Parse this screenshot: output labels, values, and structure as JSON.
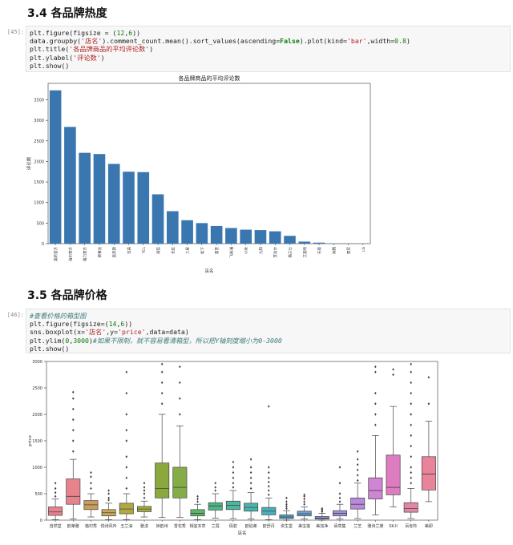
{
  "sections": [
    {
      "title": "3.4 各品牌热度",
      "prompt": "[45]:"
    },
    {
      "title": "3.5 各品牌价格",
      "prompt": "[46]:"
    }
  ],
  "code1": [
    "plt.figure(figsize = (12,6))",
    "data.groupby('店名').comment_count.mean().sort_values(ascending=False).plot(kind='bar',width=0.8)",
    "plt.title('各品牌商品的平均评论数')",
    "plt.ylabel('评论数')",
    "plt.show()"
  ],
  "code2": [
    "#查看价格的箱型图",
    "plt.figure(figsize=(14,6))",
    "sns.boxplot(x='店名',y='price',data=data)",
    "plt.ylim(0,3000)#如果不限制，就不容易看清箱型，所以把Y轴刻度缩小为0-3000",
    "plt.show()"
  ],
  "chart_data": [
    {
      "type": "bar",
      "title": "各品牌商品的平均评论数",
      "xlabel": "店名",
      "ylabel": "评论数",
      "ylim": [
        0,
        3900
      ],
      "yticks": [
        0,
        500,
        1000,
        1500,
        2000,
        2500,
        3000,
        3500
      ],
      "color": "#3a76b0",
      "categories": [
        "美的官方",
        "海尔官方",
        "格力官方",
        "荣事达",
        "奥克斯",
        "志高",
        "TCL",
        "海信",
        "长虹",
        "三星",
        "松下",
        "夏普",
        "飞利浦",
        "小米",
        "九阳",
        "苏泊尔",
        "格兰仕",
        "艾美特",
        "先锋",
        "奔腾",
        "索尼",
        "LG"
      ],
      "values": [
        3730,
        2840,
        2210,
        2180,
        1940,
        1750,
        1740,
        1200,
        790,
        570,
        500,
        430,
        380,
        340,
        330,
        300,
        190,
        50,
        25,
        8,
        5,
        3
      ]
    },
    {
      "type": "boxplot",
      "xlabel": "店名",
      "ylabel": "price",
      "ylim": [
        0,
        3000
      ],
      "yticks": [
        0,
        500,
        1000,
        1500,
        2000,
        2500,
        3000
      ],
      "categories": [
        "自然堂",
        "欧莱雅",
        "植村秀",
        "悦诗风吟",
        "玉兰油",
        "雅漾",
        "娇韵诗",
        "雪花秀",
        "相宜本草",
        "兰蔻",
        "倩碧",
        "欧珀莱",
        "欧舒丹",
        "资生堂",
        "美宝莲",
        "美加净",
        "佰草集",
        "兰芝",
        "雅诗兰黛",
        "SK-II",
        "百雀羚",
        "美即"
      ],
      "colors": [
        "#e8828d",
        "#e8828d",
        "#c89d5c",
        "#c8a850",
        "#b2a840",
        "#a3ae3e",
        "#8aa83c",
        "#84ad47",
        "#5cb76a",
        "#4db687",
        "#4cb69f",
        "#49b3ad",
        "#48b0bb",
        "#4aa9c8",
        "#6aa1d5",
        "#8b98d8",
        "#a191dd",
        "#b989db",
        "#d084d4",
        "#dd7cc0",
        "#e287a6",
        "#e8839a"
      ],
      "boxes": [
        {
          "q1": 90,
          "med": 155,
          "q3": 250,
          "lo": 10,
          "hi": 400,
          "out": [
            450,
            520,
            600,
            700
          ]
        },
        {
          "q1": 300,
          "med": 450,
          "q3": 780,
          "lo": 20,
          "hi": 1150,
          "out": [
            1300,
            1500,
            1700,
            1900,
            2100,
            2300,
            2420
          ]
        },
        {
          "q1": 200,
          "med": 290,
          "q3": 370,
          "lo": 60,
          "hi": 500,
          "out": [
            600,
            700,
            820,
            900
          ]
        },
        {
          "q1": 80,
          "med": 140,
          "q3": 200,
          "lo": 10,
          "hi": 320,
          "out": [
            380,
            420,
            500,
            560
          ]
        },
        {
          "q1": 120,
          "med": 210,
          "q3": 320,
          "lo": 10,
          "hi": 500,
          "out": [
            600,
            800,
            1000,
            1200,
            1500,
            1700,
            2000,
            2400,
            2800
          ]
        },
        {
          "q1": 160,
          "med": 210,
          "q3": 260,
          "lo": 60,
          "hi": 360,
          "out": [
            420,
            500,
            560,
            620,
            700
          ]
        },
        {
          "q1": 420,
          "med": 600,
          "q3": 1080,
          "lo": 50,
          "hi": 2000,
          "out": [
            2200,
            2400,
            2600,
            2800,
            2950
          ]
        },
        {
          "q1": 420,
          "med": 620,
          "q3": 1000,
          "lo": 50,
          "hi": 1780,
          "out": [
            2000,
            2300,
            2600,
            2900
          ]
        },
        {
          "q1": 80,
          "med": 130,
          "q3": 200,
          "lo": 10,
          "hi": 300,
          "out": [
            350,
            400,
            450
          ]
        },
        {
          "q1": 190,
          "med": 270,
          "q3": 330,
          "lo": 40,
          "hi": 500,
          "out": [
            560,
            620,
            700
          ]
        },
        {
          "q1": 200,
          "med": 280,
          "q3": 360,
          "lo": 30,
          "hi": 560,
          "out": [
            620,
            700,
            800,
            900,
            1000,
            1100
          ]
        },
        {
          "q1": 170,
          "med": 240,
          "q3": 320,
          "lo": 20,
          "hi": 520,
          "out": [
            600,
            700,
            800,
            900,
            1000,
            1150
          ]
        },
        {
          "q1": 100,
          "med": 170,
          "q3": 240,
          "lo": 10,
          "hi": 420,
          "out": [
            480,
            560,
            640,
            720,
            800,
            900,
            1000,
            2150
          ]
        },
        {
          "q1": 30,
          "med": 60,
          "q3": 100,
          "lo": 0,
          "hi": 180,
          "out": [
            220,
            260,
            300,
            350,
            420
          ]
        },
        {
          "q1": 80,
          "med": 120,
          "q3": 170,
          "lo": 20,
          "hi": 250,
          "out": [
            300,
            350,
            400,
            450,
            480
          ]
        },
        {
          "q1": 20,
          "med": 40,
          "q3": 70,
          "lo": 0,
          "hi": 130,
          "out": [
            160,
            180,
            200,
            220
          ]
        },
        {
          "q1": 80,
          "med": 130,
          "q3": 180,
          "lo": 20,
          "hi": 300,
          "out": [
            350,
            420,
            500,
            700,
            1000
          ]
        },
        {
          "q1": 210,
          "med": 300,
          "q3": 420,
          "lo": 30,
          "hi": 700,
          "out": [
            750,
            850,
            950,
            1050,
            1150,
            1300
          ]
        },
        {
          "q1": 400,
          "med": 560,
          "q3": 800,
          "lo": 100,
          "hi": 1600,
          "out": [
            1800,
            2000,
            2200,
            2400,
            2800,
            2900
          ]
        },
        {
          "q1": 480,
          "med": 620,
          "q3": 1230,
          "lo": 250,
          "hi": 2150,
          "out": [
            2750,
            2850
          ]
        },
        {
          "q1": 150,
          "med": 220,
          "q3": 330,
          "lo": 30,
          "hi": 600,
          "out": [
            700,
            800,
            900,
            1000,
            1200,
            1400,
            1600,
            1800,
            2000,
            2200,
            2400,
            2600,
            2800,
            2950
          ]
        },
        {
          "q1": 570,
          "med": 870,
          "q3": 1200,
          "lo": 350,
          "hi": 1870,
          "out": [
            2200,
            2700
          ]
        }
      ]
    }
  ]
}
